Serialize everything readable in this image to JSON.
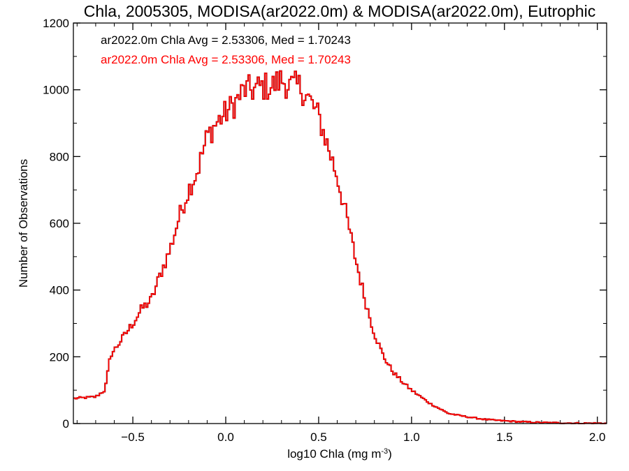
{
  "chart_data": {
    "type": "histogram-step",
    "title": "Chla, 2005305, MODISA(ar2022.0m) & MODISA(ar2022.0m), Eutrophic",
    "xlabel": "log10 Chla (mg m",
    "xlabel_superscript": "-3",
    "xlabel_suffix": ")",
    "ylabel": "Number of Observations",
    "xlim": [
      -0.82,
      2.05
    ],
    "ylim": [
      0,
      1200
    ],
    "xticks": [
      -0.5,
      0.0,
      0.5,
      1.0,
      1.5,
      2.0
    ],
    "xtick_labels": [
      "−0.5",
      "0.0",
      "0.5",
      "1.0",
      "1.5",
      "2.0"
    ],
    "yticks": [
      0,
      200,
      400,
      600,
      800,
      1000,
      1200
    ],
    "ytick_labels": [
      "0",
      "200",
      "400",
      "600",
      "800",
      "1000",
      "1200"
    ],
    "annotations": [
      {
        "text": "ar2022.0m Chla Avg = 2.53306, Med = 1.70243",
        "color": "#000000"
      },
      {
        "text": "ar2022.0m Chla Avg = 2.53306, Med = 1.70243",
        "color": "#ff0000"
      }
    ],
    "series": [
      {
        "color": "#000000",
        "style": "step",
        "bin_width": 0.01
      },
      {
        "color": "#ff0000",
        "style": "step",
        "bin_width": 0.01
      }
    ],
    "x": [
      -0.82,
      -0.7,
      -0.65,
      -0.62,
      -0.6,
      -0.55,
      -0.5,
      -0.45,
      -0.4,
      -0.35,
      -0.3,
      -0.25,
      -0.2,
      -0.15,
      -0.1,
      -0.05,
      0.0,
      0.05,
      0.1,
      0.15,
      0.2,
      0.25,
      0.3,
      0.35,
      0.4,
      0.45,
      0.5,
      0.55,
      0.6,
      0.65,
      0.7,
      0.75,
      0.8,
      0.85,
      0.9,
      0.95,
      1.0,
      1.05,
      1.1,
      1.15,
      1.2,
      1.3,
      1.4,
      1.5,
      1.6,
      1.7,
      1.8,
      1.9,
      2.05
    ],
    "values": [
      75,
      80,
      100,
      205,
      220,
      260,
      300,
      345,
      370,
      450,
      520,
      620,
      700,
      760,
      860,
      900,
      930,
      960,
      1000,
      1000,
      1010,
      1010,
      1030,
      1010,
      1010,
      970,
      920,
      830,
      740,
      620,
      490,
      370,
      270,
      200,
      155,
      125,
      100,
      80,
      60,
      45,
      30,
      20,
      12,
      8,
      5,
      3,
      2,
      1,
      1
    ]
  }
}
